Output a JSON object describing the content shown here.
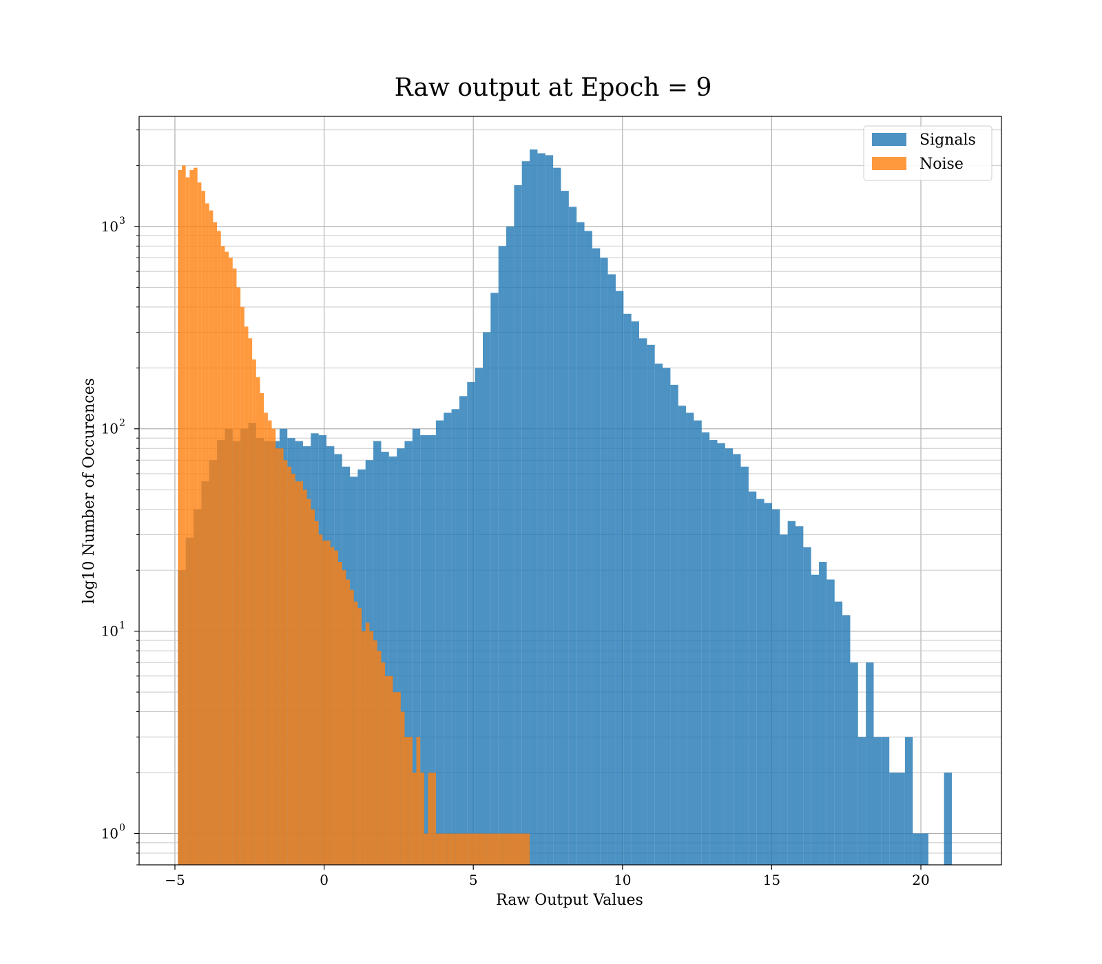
{
  "chart_data": {
    "type": "histogram",
    "title": "Raw output at Epoch = 9",
    "xlabel": "Raw Output Values",
    "ylabel": "log10 Number of Occurences",
    "xlim": [
      -6.2,
      22.7
    ],
    "ylim": [
      0.7,
      3500
    ],
    "yscale": "log",
    "grid": true,
    "grid_minor": true,
    "legend_position": "top-right",
    "x_ticks": [
      -5,
      0,
      5,
      10,
      15,
      20
    ],
    "x_tick_labels": [
      "−5",
      "0",
      "5",
      "10",
      "15",
      "20"
    ],
    "y_ticks": [
      1,
      10,
      100,
      1000
    ],
    "y_tick_bases": [
      "10",
      "10",
      "10",
      "10"
    ],
    "y_tick_exponents": [
      "0",
      "1",
      "2",
      "3"
    ],
    "series": [
      {
        "name": "Signals",
        "color": "#1f77b4",
        "opacity": 0.8,
        "bin_start": -4.9,
        "bin_width": 0.262,
        "counts": [
          20,
          29,
          40,
          55,
          70,
          88,
          100,
          87,
          100,
          107,
          90,
          87,
          87,
          100,
          90,
          87,
          82,
          95,
          93,
          82,
          75,
          65,
          58,
          63,
          70,
          87,
          77,
          73,
          80,
          87,
          100,
          93,
          93,
          110,
          120,
          125,
          145,
          170,
          200,
          300,
          470,
          800,
          1000,
          1600,
          2100,
          2400,
          2300,
          2250,
          1950,
          1500,
          1250,
          1050,
          950,
          780,
          700,
          580,
          480,
          370,
          340,
          280,
          260,
          210,
          200,
          165,
          130,
          120,
          110,
          96,
          88,
          85,
          80,
          75,
          65,
          49,
          45,
          43,
          40,
          30,
          35,
          33,
          26,
          19,
          22,
          18,
          14,
          12,
          7,
          3,
          7,
          3,
          3,
          2,
          2,
          3,
          1,
          1,
          0,
          0,
          2
        ]
      },
      {
        "name": "Noise",
        "color": "#ff7f0e",
        "opacity": 0.8,
        "bin_start": -4.9,
        "bin_width": 0.131,
        "counts": [
          1900,
          2000,
          1750,
          1900,
          1950,
          1650,
          1500,
          1300,
          1200,
          1050,
          950,
          800,
          750,
          700,
          620,
          500,
          400,
          320,
          280,
          220,
          180,
          150,
          120,
          110,
          100,
          80,
          80,
          70,
          65,
          60,
          55,
          55,
          50,
          45,
          40,
          35,
          30,
          28,
          28,
          26,
          25,
          22,
          20,
          18,
          16,
          14,
          13,
          10,
          11,
          10,
          9,
          8,
          7,
          6,
          6,
          5,
          5,
          4,
          3,
          3,
          2,
          3,
          2,
          1,
          2,
          2,
          1,
          1,
          1,
          1,
          1,
          1,
          1,
          1,
          1,
          1,
          1,
          1,
          1,
          1,
          1,
          1,
          1,
          1,
          1,
          1,
          1,
          1,
          1,
          1
        ]
      }
    ]
  }
}
